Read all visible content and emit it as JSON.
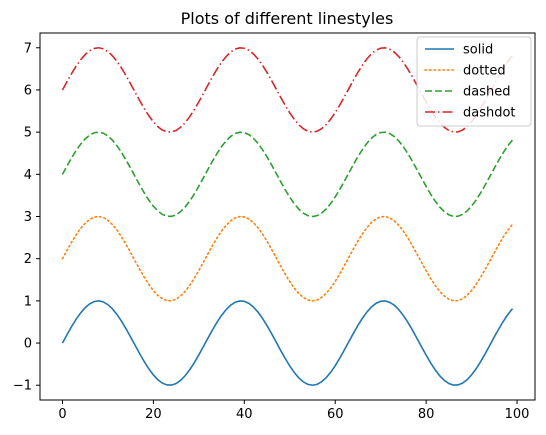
{
  "chart_data": {
    "type": "line",
    "title": "Plots of different linestyles",
    "xlabel": "",
    "ylabel": "",
    "xlim": [
      -4.95,
      103.95
    ],
    "ylim": [
      -1.35,
      7.35
    ],
    "xticks": [
      0,
      20,
      40,
      60,
      80,
      100
    ],
    "yticks": [
      -1,
      0,
      1,
      2,
      3,
      4,
      5,
      6,
      7
    ],
    "grid": false,
    "legend_position": "top-right",
    "x": [
      0,
      1,
      2,
      3,
      4,
      5,
      6,
      7,
      8,
      9,
      10,
      11,
      12,
      13,
      14,
      15,
      16,
      17,
      18,
      19,
      20,
      21,
      22,
      23,
      24,
      25,
      26,
      27,
      28,
      29,
      30,
      31,
      32,
      33,
      34,
      35,
      36,
      37,
      38,
      39,
      40,
      41,
      42,
      43,
      44,
      45,
      46,
      47,
      48,
      49,
      50,
      51,
      52,
      53,
      54,
      55,
      56,
      57,
      58,
      59,
      60,
      61,
      62,
      63,
      64,
      65,
      66,
      67,
      68,
      69,
      70,
      71,
      72,
      73,
      74,
      75,
      76,
      77,
      78,
      79,
      80,
      81,
      82,
      83,
      84,
      85,
      86,
      87,
      88,
      89,
      90,
      91,
      92,
      93,
      94,
      95,
      96,
      97,
      98,
      99
    ],
    "series": [
      {
        "name": "solid",
        "color": "#1f77b4",
        "linestyle": "solid",
        "values": [
          0,
          0.199,
          0.389,
          0.565,
          0.717,
          0.841,
          0.932,
          0.985,
          1.0,
          0.974,
          0.909,
          0.808,
          0.675,
          0.516,
          0.335,
          0.141,
          -0.058,
          -0.256,
          -0.443,
          -0.612,
          -0.757,
          -0.872,
          -0.952,
          -0.994,
          -0.996,
          -0.959,
          -0.883,
          -0.773,
          -0.631,
          -0.465,
          -0.279,
          -0.083,
          0.117,
          0.312,
          0.494,
          0.657,
          0.793,
          0.898,
          0.967,
          0.998,
          0.989,
          0.941,
          0.855,
          0.735,
          0.585,
          0.412,
          0.223,
          0.024,
          -0.176,
          -0.367,
          -0.544,
          -0.699,
          -0.827,
          -0.921,
          -0.98,
          -1.0,
          -0.979,
          -0.918,
          -0.822,
          -0.693,
          -0.537,
          -0.358,
          -0.165,
          0.033,
          0.231,
          0.42,
          0.591,
          0.74,
          0.859,
          0.944,
          0.991,
          0.998,
          0.966,
          0.896,
          0.79,
          0.652,
          0.489,
          0.305,
          0.109,
          -0.091,
          -0.287,
          -0.471,
          -0.637,
          -0.777,
          -0.886,
          -0.96,
          -0.997,
          -0.994,
          -0.951,
          -0.87,
          -0.754,
          -0.609,
          -0.438,
          -0.251,
          -0.054,
          0.146,
          0.339,
          0.52,
          0.68,
          0.815
        ]
      },
      {
        "name": "dotted",
        "color": "#ff7f0e",
        "linestyle": "dotted",
        "values": [
          2,
          2.199,
          2.389,
          2.565,
          2.717,
          2.841,
          2.932,
          2.985,
          3.0,
          2.974,
          2.909,
          2.808,
          2.675,
          2.516,
          2.335,
          2.141,
          1.942,
          1.744,
          1.557,
          1.388,
          1.243,
          1.128,
          1.048,
          1.006,
          1.004,
          1.041,
          1.117,
          1.227,
          1.369,
          1.535,
          1.721,
          1.917,
          2.117,
          2.312,
          2.494,
          2.657,
          2.793,
          2.898,
          2.967,
          2.998,
          2.989,
          2.941,
          2.855,
          2.735,
          2.585,
          2.412,
          2.223,
          2.024,
          1.824,
          1.633,
          1.456,
          1.301,
          1.173,
          1.079,
          1.02,
          1.0,
          1.021,
          1.082,
          1.178,
          1.307,
          1.463,
          1.642,
          1.835,
          2.033,
          2.231,
          2.42,
          2.591,
          2.74,
          2.859,
          2.944,
          2.991,
          2.998,
          2.966,
          2.896,
          2.79,
          2.652,
          2.489,
          2.305,
          2.109,
          1.909,
          1.713,
          1.529,
          1.363,
          1.223,
          1.114,
          1.04,
          1.003,
          1.006,
          1.049,
          1.13,
          1.246,
          1.391,
          1.562,
          1.749,
          1.946,
          2.146,
          2.339,
          2.52,
          2.68,
          2.815
        ]
      },
      {
        "name": "dashed",
        "color": "#2ca02c",
        "linestyle": "dashed",
        "values": [
          4,
          4.199,
          4.389,
          4.565,
          4.717,
          4.841,
          4.932,
          4.985,
          5.0,
          4.974,
          4.909,
          4.808,
          4.675,
          4.516,
          4.335,
          4.141,
          3.942,
          3.744,
          3.557,
          3.388,
          3.243,
          3.128,
          3.048,
          3.006,
          3.004,
          3.041,
          3.117,
          3.227,
          3.369,
          3.535,
          3.721,
          3.917,
          4.117,
          4.312,
          4.494,
          4.657,
          4.793,
          4.898,
          4.967,
          4.998,
          4.989,
          4.941,
          4.855,
          4.735,
          4.585,
          4.412,
          4.223,
          4.024,
          3.824,
          3.633,
          3.456,
          3.301,
          3.173,
          3.079,
          3.02,
          3.0,
          3.021,
          3.082,
          3.178,
          3.307,
          3.463,
          3.642,
          3.835,
          4.033,
          4.231,
          4.42,
          4.591,
          4.74,
          4.859,
          4.944,
          4.991,
          4.998,
          4.966,
          4.896,
          4.79,
          4.652,
          4.489,
          4.305,
          4.109,
          3.909,
          3.713,
          3.529,
          3.363,
          3.223,
          3.114,
          3.04,
          3.003,
          3.006,
          3.049,
          3.13,
          3.246,
          3.391,
          3.562,
          3.749,
          3.946,
          4.146,
          4.339,
          4.52,
          4.68,
          4.815
        ]
      },
      {
        "name": "dashdot",
        "color": "#d62728",
        "linestyle": "dashdot",
        "values": [
          6,
          6.199,
          6.389,
          6.565,
          6.717,
          6.841,
          6.932,
          6.985,
          7.0,
          6.974,
          6.909,
          6.808,
          6.675,
          6.516,
          6.335,
          6.141,
          5.942,
          5.744,
          5.557,
          5.388,
          5.243,
          5.128,
          5.048,
          5.006,
          5.004,
          5.041,
          5.117,
          5.227,
          5.369,
          5.535,
          5.721,
          5.917,
          6.117,
          6.312,
          6.494,
          6.657,
          6.793,
          6.898,
          6.967,
          6.998,
          6.989,
          6.941,
          6.855,
          6.735,
          6.585,
          6.412,
          6.223,
          6.024,
          5.824,
          5.633,
          5.456,
          5.301,
          5.173,
          5.079,
          5.02,
          5.0,
          5.021,
          5.082,
          5.178,
          5.307,
          5.463,
          5.642,
          5.835,
          6.033,
          6.231,
          6.42,
          6.591,
          6.74,
          6.859,
          6.944,
          6.991,
          6.998,
          6.966,
          6.896,
          6.79,
          6.652,
          6.489,
          6.305,
          6.109,
          5.909,
          5.713,
          5.529,
          5.363,
          5.223,
          5.114,
          5.04,
          5.003,
          5.006,
          5.049,
          5.13,
          5.246,
          5.391,
          5.562,
          5.749,
          5.946,
          6.146,
          6.339,
          6.52,
          6.68,
          6.815
        ]
      }
    ]
  }
}
